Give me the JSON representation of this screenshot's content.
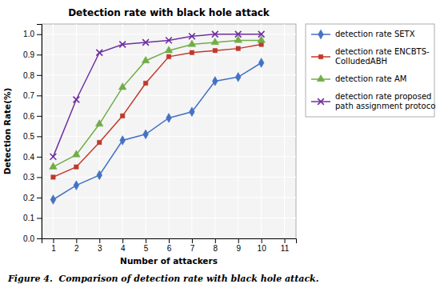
{
  "chart_data": {
    "type": "line",
    "title": "Detection rate with black hole attack",
    "xlabel": "Number of attackers",
    "ylabel": "Detection Rate(%)",
    "caption": "Figure 4.  Comparison of detection rate with black hole attack.",
    "x": [
      1,
      2,
      3,
      4,
      5,
      6,
      7,
      8,
      9,
      10
    ],
    "series": [
      {
        "name": "detection rate SETX",
        "color": "#4472C4",
        "marker": "diamond",
        "values": [
          0.19,
          0.26,
          0.31,
          0.48,
          0.51,
          0.59,
          0.62,
          0.77,
          0.79,
          0.86
        ]
      },
      {
        "name": "detection rate ENCBTS-\nColludedABH",
        "color": "#C0392B",
        "marker": "square",
        "values": [
          0.3,
          0.35,
          0.47,
          0.6,
          0.76,
          0.89,
          0.91,
          0.92,
          0.93,
          0.95
        ]
      },
      {
        "name": "detection rate AM",
        "color": "#70AD47",
        "marker": "triangle",
        "values": [
          0.35,
          0.41,
          0.56,
          0.74,
          0.87,
          0.92,
          0.95,
          0.96,
          0.97,
          0.97
        ]
      },
      {
        "name": "detection rate proposed\npath assignment protocol",
        "color": "#7030A0",
        "marker": "x",
        "values": [
          0.4,
          0.68,
          0.91,
          0.95,
          0.96,
          0.97,
          0.99,
          1.0,
          1.0,
          1.0
        ]
      }
    ],
    "xlim": [
      0.5,
      11.5
    ],
    "ylim": [
      0,
      1.05
    ],
    "xticks": [
      1,
      2,
      3,
      4,
      5,
      6,
      7,
      8,
      9,
      10,
      11
    ],
    "yticks": [
      {
        "value": 0,
        "label": "0.0"
      },
      0.1,
      0.2,
      0.3,
      0.4,
      0.5,
      0.6,
      0.7,
      0.8,
      0.9,
      {
        "value": 1,
        "label": "1.0"
      }
    ],
    "grid": true,
    "legend": "right"
  }
}
